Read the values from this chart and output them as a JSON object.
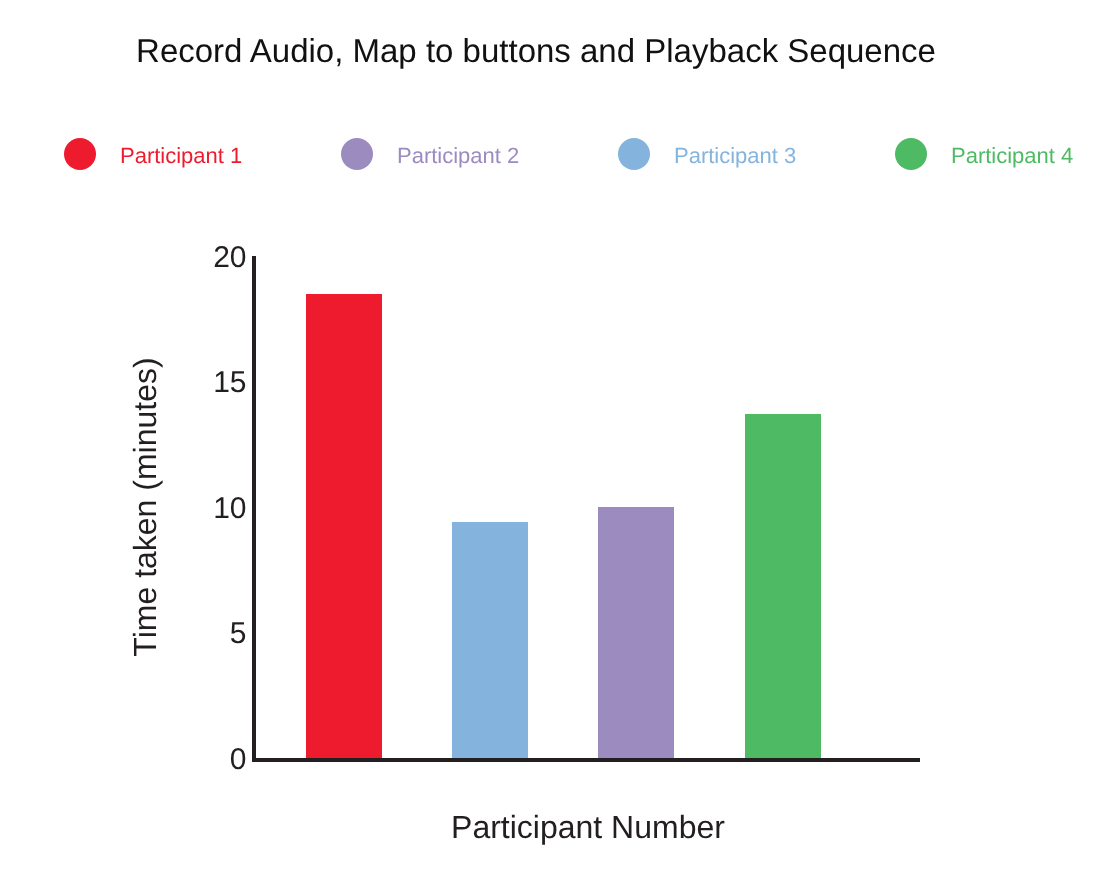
{
  "chart_data": {
    "type": "bar",
    "title": "Record Audio, Map to buttons and Playback Sequence",
    "xlabel": "Participant Number",
    "ylabel": "Time taken (minutes)",
    "categories": [
      null,
      null,
      null,
      null
    ],
    "series": [
      {
        "name": "Participant 1",
        "color": "#ee1b2f",
        "values": [
          18.5,
          null,
          null,
          null
        ]
      },
      {
        "name": "Participant 2",
        "color": "#9b8bbf",
        "values": [
          null,
          null,
          10,
          null
        ]
      },
      {
        "name": "Participant 3",
        "color": "#84b4dd",
        "values": [
          null,
          9.4,
          null,
          null
        ]
      },
      {
        "name": "Participant 4",
        "color": "#4fba64",
        "values": [
          null,
          null,
          null,
          13.7
        ]
      }
    ],
    "stacked": true,
    "ylim": [
      0,
      20
    ],
    "yticks": [
      0,
      5,
      10,
      15,
      20
    ],
    "tick_labels": "y",
    "legend": "top"
  }
}
